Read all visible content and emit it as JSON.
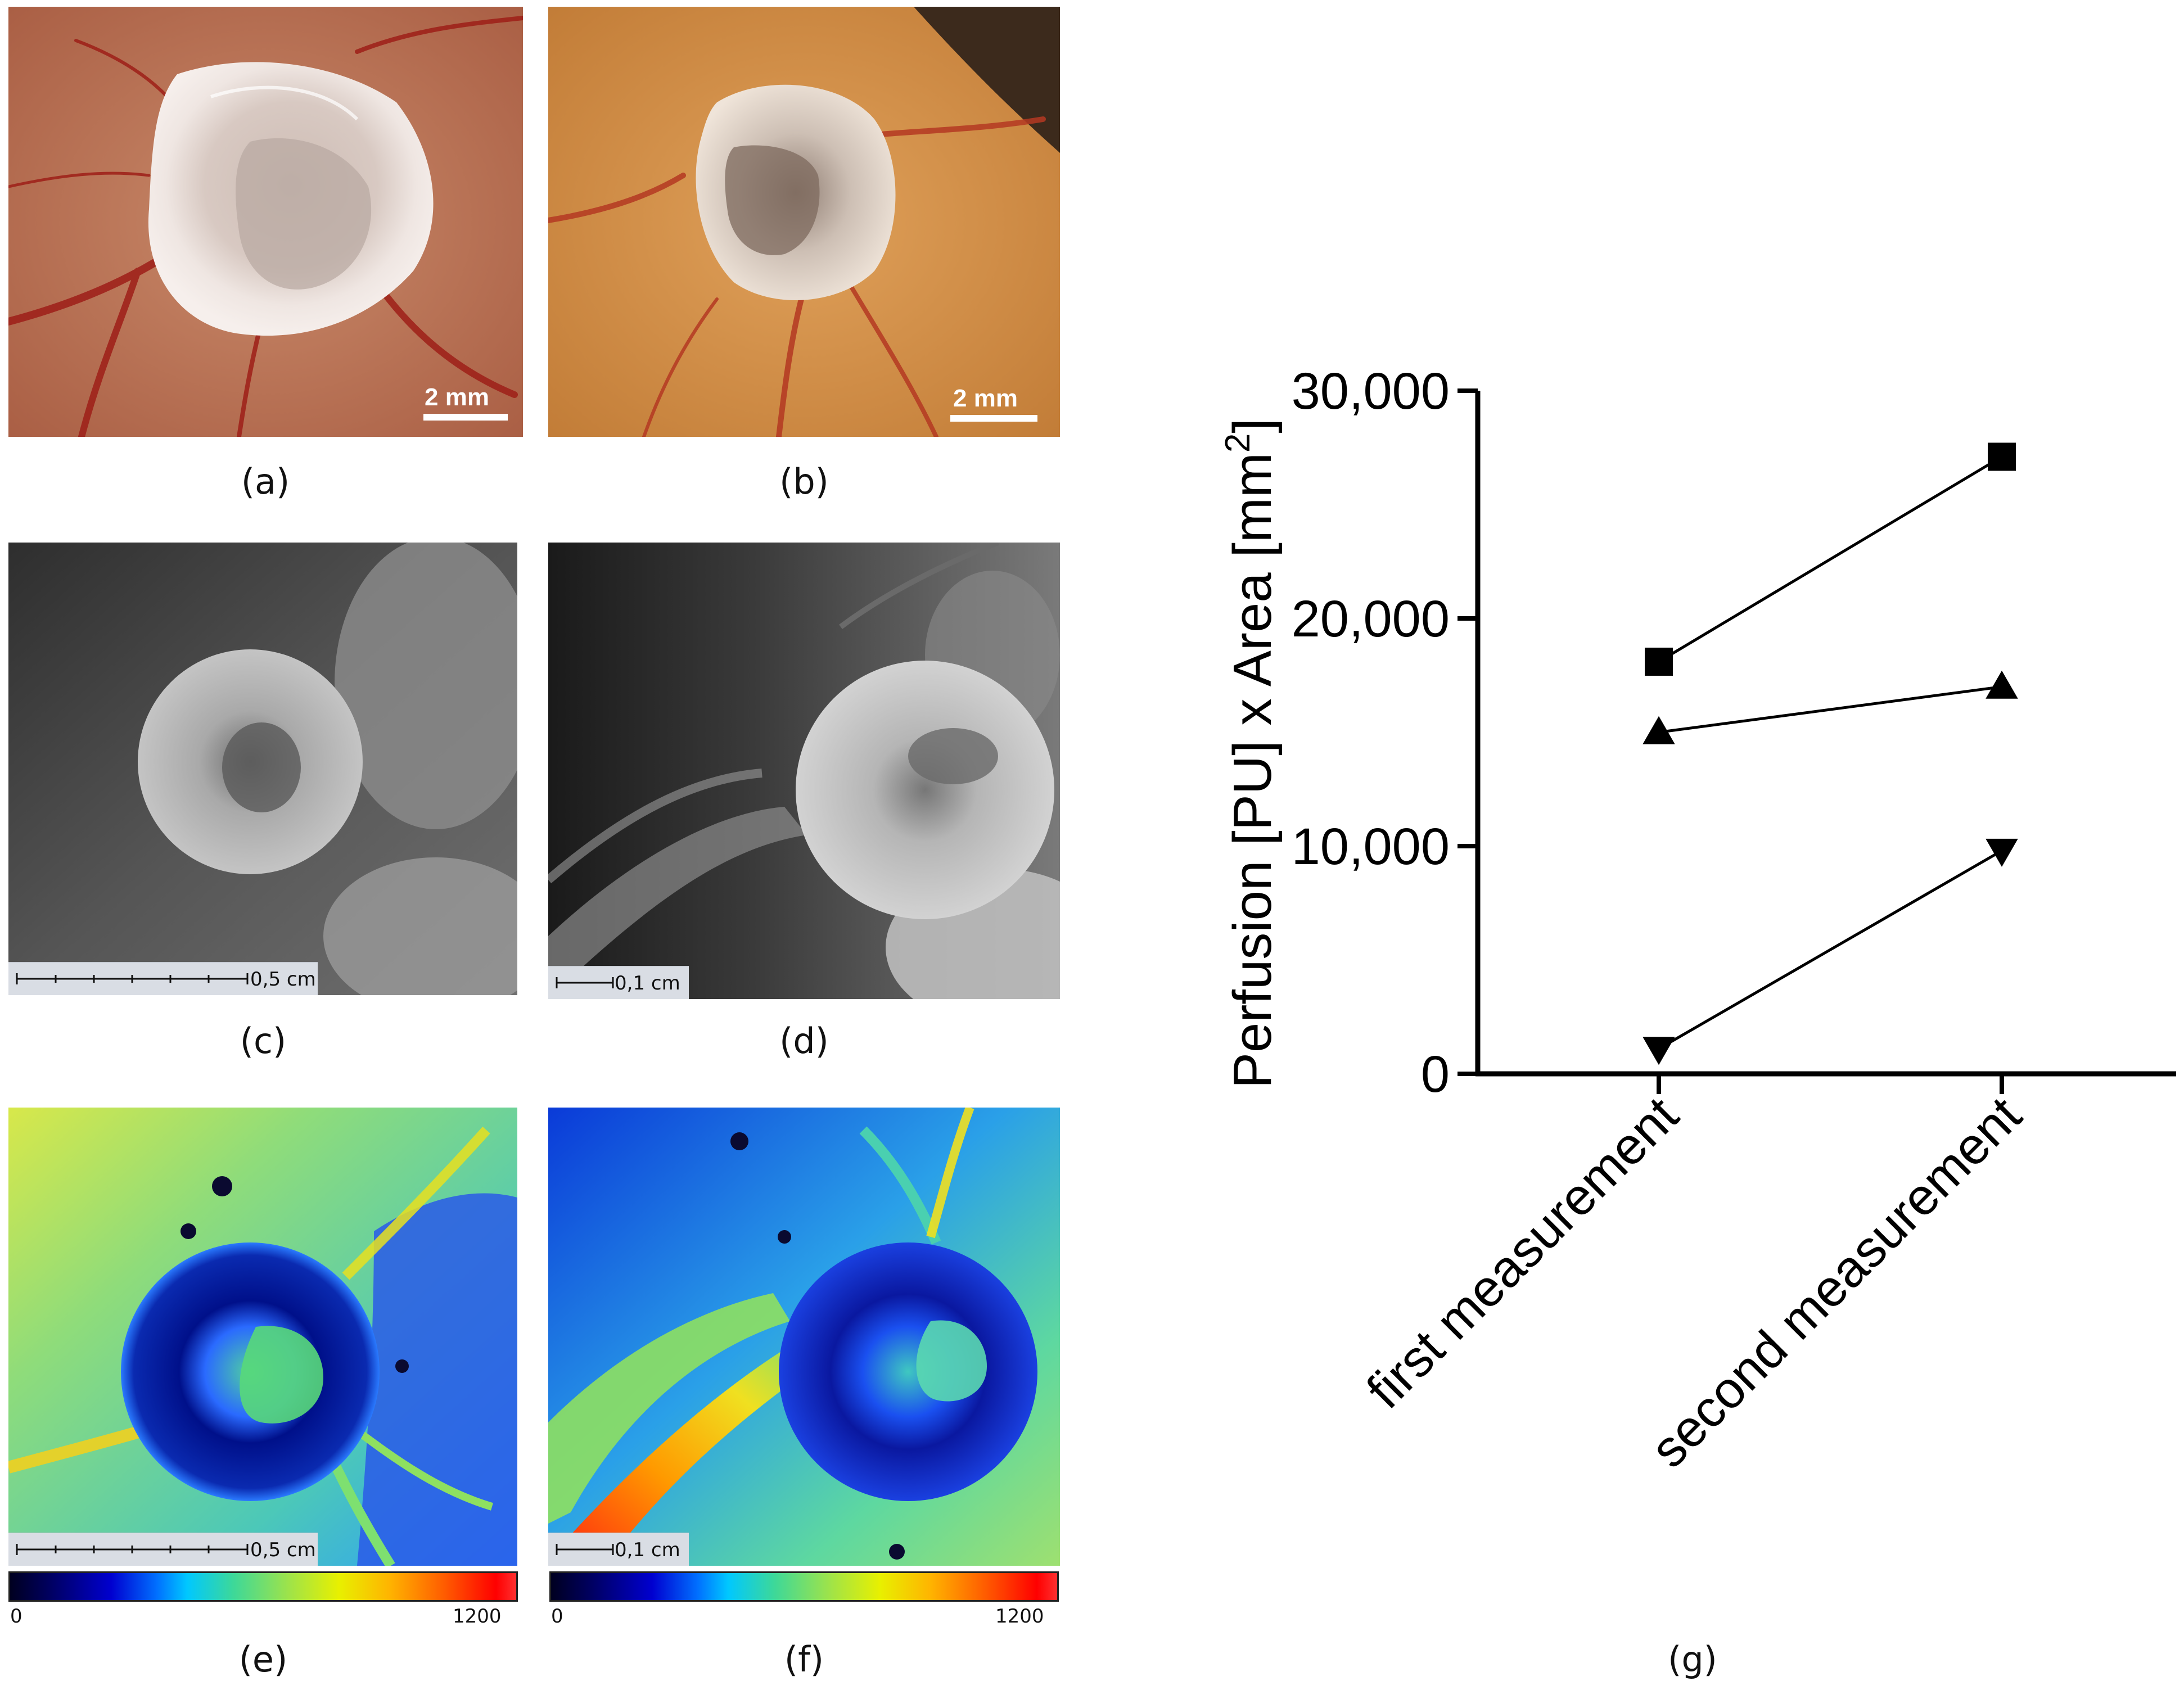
{
  "panels": {
    "a": {
      "label": "(a)",
      "scale_text": "2 mm"
    },
    "b": {
      "label": "(b)",
      "scale_text": "2 mm"
    },
    "c": {
      "label": "(c)",
      "scale_text": "0,5 cm"
    },
    "d": {
      "label": "(d)",
      "scale_text": "0,1 cm"
    },
    "e": {
      "label": "(e)",
      "scale_text": "0,5 cm",
      "colorbar_min": "0",
      "colorbar_max": "1200"
    },
    "f": {
      "label": "(f)",
      "scale_text": "0,1 cm",
      "colorbar_min": "0",
      "colorbar_max": "1200"
    },
    "g": {
      "label": "(g)"
    }
  },
  "chart_data": {
    "type": "line",
    "categories": [
      "first measurement",
      "second measurement"
    ],
    "ylabel_main": "Perfusion [PU] x Area [mm",
    "ylabel_sup": "2",
    "ylabel_close": "]",
    "ylim": [
      0,
      30000
    ],
    "yticks": [
      0,
      10000,
      20000,
      30000
    ],
    "ytick_labels": [
      "0",
      "10,000",
      "20,000",
      "30,000"
    ],
    "series": [
      {
        "marker": "square",
        "values": [
          18100,
          27100
        ]
      },
      {
        "marker": "triangle-up",
        "values": [
          15000,
          17000
        ]
      },
      {
        "marker": "triangle-down",
        "values": [
          1100,
          9800
        ]
      }
    ],
    "grid": false,
    "legend": "none"
  }
}
